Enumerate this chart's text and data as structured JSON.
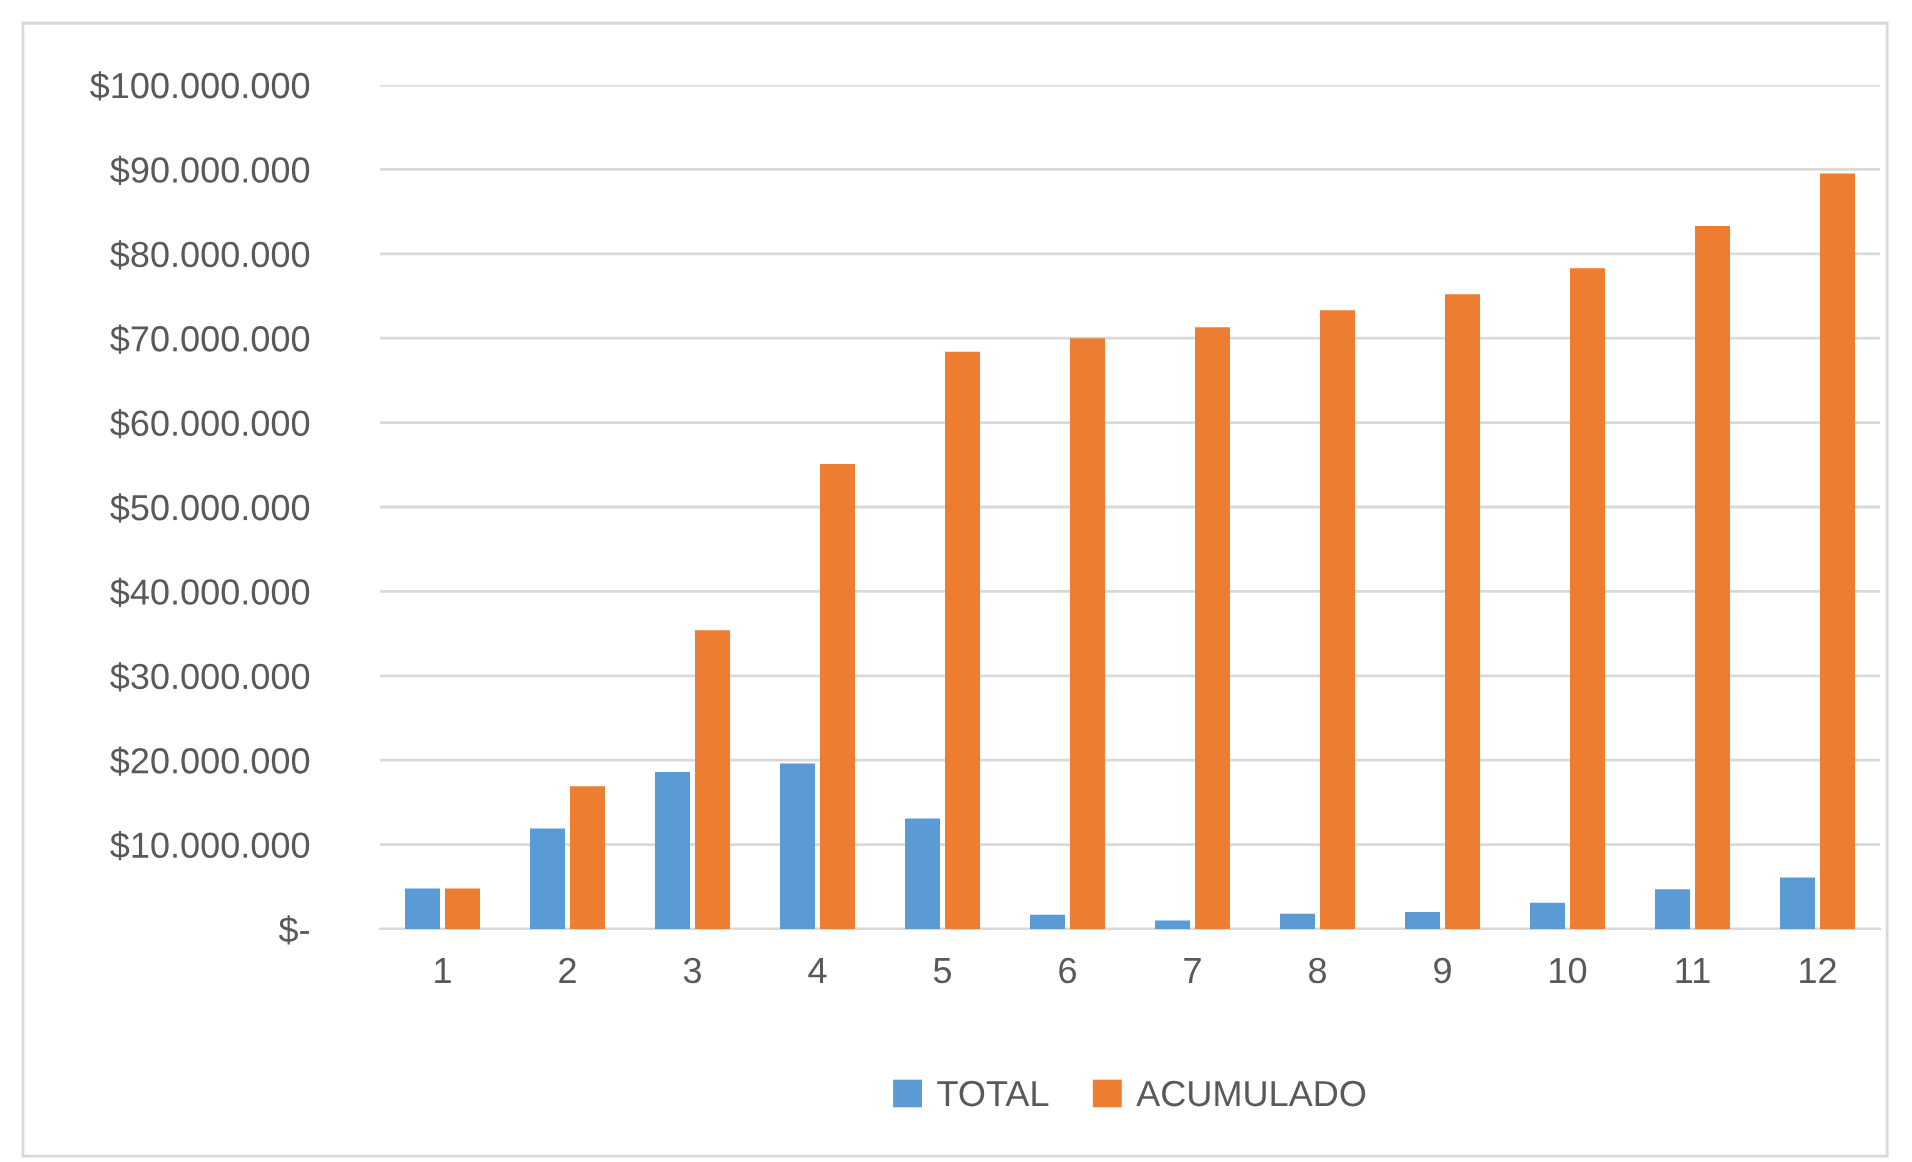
{
  "chart_data": {
    "type": "bar",
    "categories": [
      "1",
      "2",
      "3",
      "4",
      "5",
      "6",
      "7",
      "8",
      "9",
      "10",
      "11",
      "12"
    ],
    "series": [
      {
        "name": "TOTAL",
        "color": "#5b9bd5",
        "values": [
          4800000.0,
          11900000.0,
          18600000.0,
          19600000.0,
          13100000.0,
          1700000.0,
          1000000.0,
          1800000.0,
          2000000.0,
          3100000.0,
          4700000.0,
          6100000.0
        ]
      },
      {
        "name": "ACUMULADO",
        "color": "#ed7d31",
        "values": [
          4800000.0,
          16900000.0,
          35400000.0,
          55100000.0,
          68400000.0,
          70000000.0,
          71300000.0,
          73300000.0,
          75200000.0,
          78300000.0,
          83300000.0,
          89500000.0
        ]
      }
    ],
    "ylim": [
      0,
      100000000
    ],
    "yticks": [
      {
        "value": 0,
        "label": "$-"
      },
      {
        "value": 10000000,
        "label": "$10.000.000"
      },
      {
        "value": 20000000,
        "label": "$20.000.000"
      },
      {
        "value": 30000000,
        "label": "$30.000.000"
      },
      {
        "value": 40000000,
        "label": "$40.000.000"
      },
      {
        "value": 50000000,
        "label": "$50.000.000"
      },
      {
        "value": 60000000,
        "label": "$60.000.000"
      },
      {
        "value": 70000000,
        "label": "$70.000.000"
      },
      {
        "value": 80000000,
        "label": "$80.000.000"
      },
      {
        "value": 90000000,
        "label": "$90.000.000"
      },
      {
        "value": 100000000,
        "label": "$100.000.000"
      }
    ],
    "grid": "y",
    "legend": "bottom"
  }
}
